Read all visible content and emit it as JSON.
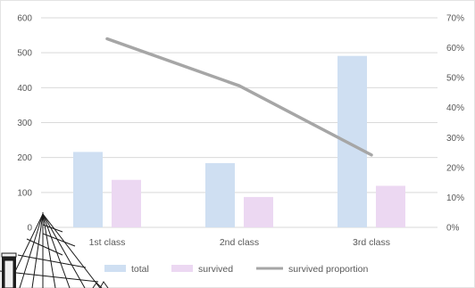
{
  "colors": {
    "total": "#cfdff2",
    "survived": "#ecd8f2",
    "proportion_line": "#a6a6a6",
    "grid": "#d9d9d9",
    "axis_text": "#595959"
  },
  "chart_data": {
    "type": "bar",
    "categories": [
      "1st class",
      "2nd class",
      "3rd class"
    ],
    "series": [
      {
        "name": "total",
        "type": "bar",
        "axis": "left",
        "values": [
          216,
          184,
          491
        ]
      },
      {
        "name": "survived",
        "type": "bar",
        "axis": "left",
        "values": [
          136,
          87,
          119
        ]
      },
      {
        "name": "survived proportion",
        "type": "line",
        "axis": "right",
        "values": [
          63,
          47.3,
          24.2
        ]
      }
    ],
    "ylim": [
      0,
      600
    ],
    "y_ticks": [
      "0",
      "100",
      "200",
      "300",
      "400",
      "500",
      "600"
    ],
    "y2lim": [
      0,
      70
    ],
    "y2_ticks": [
      "0%",
      "10%",
      "20%",
      "30%",
      "40%",
      "50%",
      "60%",
      "70%"
    ],
    "grid": true,
    "legend": "bottom"
  }
}
